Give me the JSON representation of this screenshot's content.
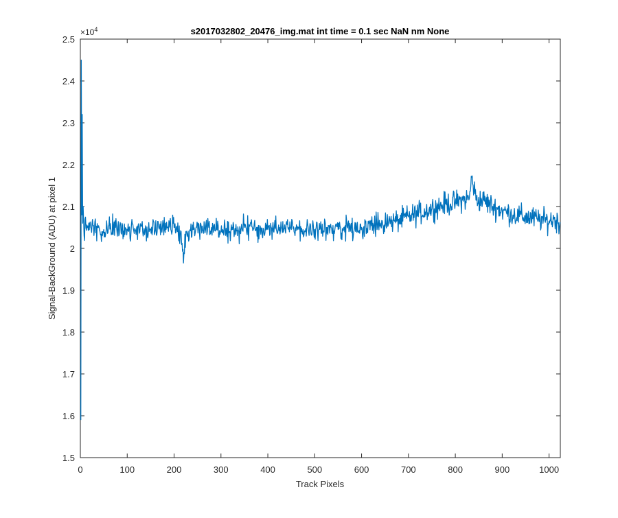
{
  "chart_data": {
    "type": "line",
    "title": "s2017032802_20476_img.mat int time = 0.1 sec  NaN nm None",
    "xlabel": "Track Pixels",
    "ylabel": "Signal-BackGround (ADU) at pixel 1",
    "xlim": [
      0,
      1024
    ],
    "ylim": [
      15000,
      25000
    ],
    "y_exponent_label": "×10^4",
    "x_ticks": [
      0,
      100,
      200,
      300,
      400,
      500,
      600,
      700,
      800,
      900,
      1000
    ],
    "x_tick_labels": [
      "0",
      "100",
      "200",
      "300",
      "400",
      "500",
      "600",
      "700",
      "800",
      "900",
      "1000"
    ],
    "y_ticks": [
      15000,
      16000,
      17000,
      18000,
      19000,
      20000,
      21000,
      22000,
      23000,
      24000,
      25000
    ],
    "y_tick_labels": [
      "1.5",
      "1.6",
      "1.7",
      "1.8",
      "1.9",
      "2",
      "2.1",
      "2.2",
      "2.3",
      "2.4",
      "2.5"
    ],
    "grid": false,
    "line_color": "#0072BD",
    "series": [
      {
        "points": [
          [
            1,
            15900
          ],
          [
            2,
            24500
          ],
          [
            3,
            20800
          ],
          [
            4,
            23200
          ],
          [
            5,
            20600
          ],
          [
            6,
            21000
          ],
          [
            8,
            20300
          ],
          [
            10,
            20700
          ],
          [
            15,
            20500
          ],
          [
            20,
            20600
          ],
          [
            30,
            20450
          ],
          [
            40,
            20500
          ],
          [
            50,
            20450
          ],
          [
            75,
            20500
          ],
          [
            100,
            20450
          ],
          [
            125,
            20500
          ],
          [
            150,
            20450
          ],
          [
            175,
            20500
          ],
          [
            200,
            20500
          ],
          [
            215,
            20400
          ],
          [
            220,
            19650
          ],
          [
            225,
            20400
          ],
          [
            240,
            20450
          ],
          [
            265,
            20550
          ],
          [
            280,
            20500
          ],
          [
            300,
            20400
          ],
          [
            325,
            20450
          ],
          [
            350,
            20500
          ],
          [
            375,
            20450
          ],
          [
            400,
            20450
          ],
          [
            425,
            20500
          ],
          [
            450,
            20450
          ],
          [
            475,
            20450
          ],
          [
            500,
            20450
          ],
          [
            525,
            20500
          ],
          [
            550,
            20450
          ],
          [
            575,
            20500
          ],
          [
            600,
            20500
          ],
          [
            625,
            20550
          ],
          [
            650,
            20600
          ],
          [
            675,
            20650
          ],
          [
            700,
            20750
          ],
          [
            725,
            20850
          ],
          [
            750,
            20950
          ],
          [
            775,
            21050
          ],
          [
            800,
            21100
          ],
          [
            815,
            21150
          ],
          [
            830,
            21200
          ],
          [
            835,
            21700
          ],
          [
            845,
            21150
          ],
          [
            860,
            21150
          ],
          [
            880,
            21000
          ],
          [
            900,
            20900
          ],
          [
            925,
            20800
          ],
          [
            950,
            20750
          ],
          [
            975,
            20700
          ],
          [
            1000,
            20650
          ],
          [
            1010,
            20700
          ],
          [
            1024,
            20600
          ]
        ]
      }
    ]
  }
}
